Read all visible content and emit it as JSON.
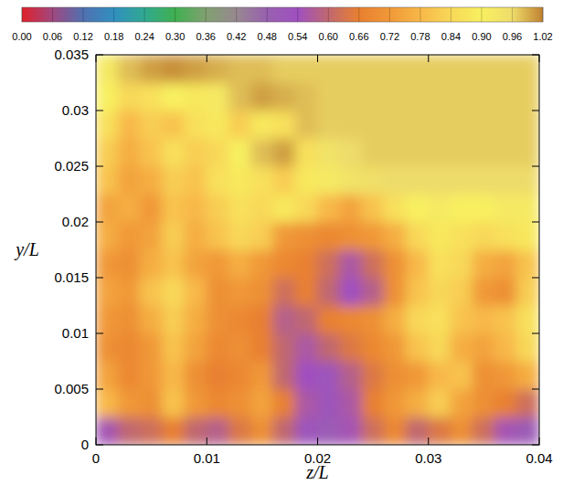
{
  "chart_data": {
    "type": "heatmap",
    "x_label": "z/L",
    "y_label": "y/L",
    "xlim": [
      0,
      0.04
    ],
    "ylim": [
      0,
      0.035
    ],
    "xticks": [
      0,
      0.01,
      0.02,
      0.03,
      0.04
    ],
    "yticks": [
      0,
      0.005,
      0.01,
      0.015,
      0.02,
      0.025,
      0.03,
      0.035
    ],
    "x": [
      0.001,
      0.003,
      0.005,
      0.007,
      0.009,
      0.011,
      0.013,
      0.015,
      0.017,
      0.019,
      0.021,
      0.023,
      0.025,
      0.027,
      0.029,
      0.031,
      0.033,
      0.035,
      0.037,
      0.039
    ],
    "y": [
      0.00125,
      0.00375,
      0.00625,
      0.00875,
      0.01125,
      0.01375,
      0.01625,
      0.01875,
      0.02125,
      0.02375,
      0.02625,
      0.02875,
      0.03125,
      0.03375
    ],
    "cells": [
      [
        0.55,
        0.6,
        0.62,
        0.66,
        0.6,
        0.58,
        0.64,
        0.7,
        0.6,
        0.52,
        0.5,
        0.55,
        0.62,
        0.68,
        0.6,
        0.64,
        0.7,
        0.62,
        0.55,
        0.5
      ],
      [
        0.78,
        0.72,
        0.7,
        0.8,
        0.72,
        0.68,
        0.7,
        0.74,
        0.66,
        0.56,
        0.52,
        0.56,
        0.66,
        0.72,
        0.76,
        0.82,
        0.74,
        0.7,
        0.66,
        0.62
      ],
      [
        0.74,
        0.68,
        0.72,
        0.78,
        0.7,
        0.66,
        0.68,
        0.72,
        0.6,
        0.54,
        0.52,
        0.58,
        0.64,
        0.7,
        0.72,
        0.78,
        0.8,
        0.7,
        0.72,
        0.76
      ],
      [
        0.7,
        0.68,
        0.72,
        0.8,
        0.74,
        0.68,
        0.7,
        0.66,
        0.6,
        0.56,
        0.6,
        0.64,
        0.68,
        0.72,
        0.8,
        0.84,
        0.76,
        0.74,
        0.78,
        0.84
      ],
      [
        0.72,
        0.7,
        0.76,
        0.82,
        0.76,
        0.7,
        0.68,
        0.66,
        0.58,
        0.6,
        0.66,
        0.68,
        0.7,
        0.76,
        0.84,
        0.86,
        0.8,
        0.78,
        0.8,
        0.86
      ],
      [
        0.74,
        0.72,
        0.8,
        0.84,
        0.78,
        0.7,
        0.72,
        0.7,
        0.62,
        0.66,
        0.6,
        0.54,
        0.58,
        0.7,
        0.8,
        0.84,
        0.82,
        0.72,
        0.7,
        0.82
      ],
      [
        0.72,
        0.7,
        0.76,
        0.8,
        0.74,
        0.72,
        0.76,
        0.72,
        0.68,
        0.66,
        0.62,
        0.56,
        0.62,
        0.7,
        0.78,
        0.86,
        0.84,
        0.76,
        0.74,
        0.8
      ],
      [
        0.76,
        0.72,
        0.74,
        0.82,
        0.76,
        0.8,
        0.84,
        0.82,
        0.72,
        0.7,
        0.68,
        0.7,
        0.72,
        0.76,
        0.84,
        0.88,
        0.86,
        0.84,
        0.86,
        0.88
      ],
      [
        0.74,
        0.76,
        0.72,
        0.8,
        0.78,
        0.82,
        0.86,
        0.84,
        0.88,
        0.84,
        0.78,
        0.74,
        0.8,
        0.86,
        0.9,
        0.92,
        0.9,
        0.9,
        0.92,
        0.92
      ],
      [
        0.8,
        0.74,
        0.76,
        0.82,
        0.8,
        0.86,
        0.88,
        0.86,
        0.82,
        0.88,
        0.92,
        0.94,
        0.95,
        0.96,
        0.96,
        0.96,
        0.96,
        0.96,
        0.96,
        0.96
      ],
      [
        0.82,
        0.76,
        0.8,
        0.86,
        0.82,
        0.84,
        0.9,
        0.98,
        1.0,
        0.86,
        0.94,
        0.96,
        0.97,
        0.97,
        0.97,
        0.97,
        0.97,
        0.97,
        0.97,
        0.97
      ],
      [
        0.86,
        0.78,
        0.82,
        0.8,
        0.86,
        0.88,
        0.82,
        0.88,
        0.86,
        0.98,
        0.97,
        0.97,
        0.97,
        0.97,
        0.97,
        0.97,
        0.97,
        0.97,
        0.97,
        0.97
      ],
      [
        0.9,
        0.84,
        0.86,
        0.9,
        0.88,
        0.92,
        0.98,
        1.0,
        0.99,
        0.98,
        0.97,
        0.97,
        0.97,
        0.97,
        0.97,
        0.97,
        0.97,
        0.97,
        0.97,
        0.97
      ],
      [
        0.92,
        0.98,
        1.0,
        1.01,
        1.0,
        0.99,
        0.98,
        0.98,
        0.97,
        0.97,
        0.97,
        0.97,
        0.97,
        0.97,
        0.97,
        0.97,
        0.97,
        0.97,
        0.97,
        0.97
      ]
    ],
    "colorbar": {
      "range": [
        0,
        1.02
      ],
      "ticks": [
        {
          "value": 0,
          "label": "0.00"
        },
        {
          "value": 0.06,
          "label": "0.06"
        },
        {
          "value": 0.12,
          "label": "0.12"
        },
        {
          "value": 0.18,
          "label": "0.18"
        },
        {
          "value": 0.24,
          "label": "0.24"
        },
        {
          "value": 0.3,
          "label": "0.30"
        },
        {
          "value": 0.36,
          "label": "0.36"
        },
        {
          "value": 0.42,
          "label": "0.42"
        },
        {
          "value": 0.48,
          "label": "0.48"
        },
        {
          "value": 0.54,
          "label": "0.54"
        },
        {
          "value": 0.6,
          "label": "0.60"
        },
        {
          "value": 0.66,
          "label": "0.66"
        },
        {
          "value": 0.72,
          "label": "0.72"
        },
        {
          "value": 0.78,
          "label": "0.78"
        },
        {
          "value": 0.84,
          "label": "0.84"
        },
        {
          "value": 0.9,
          "label": "0.90"
        },
        {
          "value": 0.96,
          "label": "0.96"
        },
        {
          "value": 1.02,
          "label": "1.02"
        }
      ],
      "colors": [
        "#e0202a",
        "#a04880",
        "#5070b0",
        "#3090c0",
        "#30a890",
        "#40b050",
        "#80a070",
        "#988890",
        "#9860b0",
        "#a050c0",
        "#c06870",
        "#e88030",
        "#f09838",
        "#f8b848",
        "#f8d858",
        "#f8f060",
        "#eedc6a",
        "#c08030"
      ]
    }
  }
}
